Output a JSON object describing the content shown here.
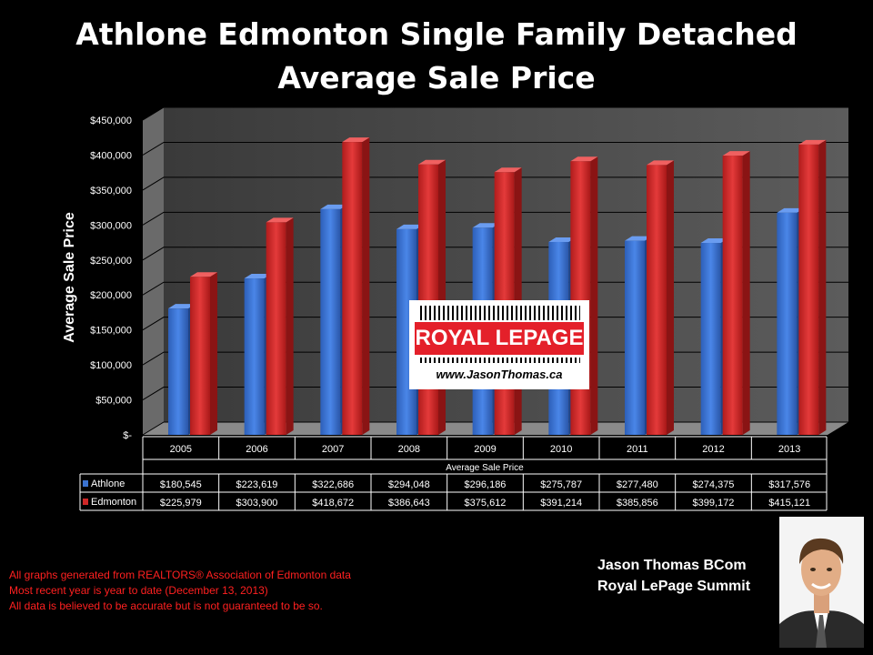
{
  "title": {
    "line1": "Athlone Edmonton Single Family Detached",
    "line2": "Average Sale Price"
  },
  "chart_data": {
    "type": "bar",
    "title": "Athlone Edmonton Single Family Detached Average Sale Price",
    "xlabel": "Average Sale Price",
    "ylabel": "Average Sale Price",
    "ylim": [
      0,
      450000
    ],
    "y_ticks": [
      "$-",
      "$50,000",
      "$100,000",
      "$150,000",
      "$200,000",
      "$250,000",
      "$300,000",
      "$350,000",
      "$400,000",
      "$450,000"
    ],
    "grid": true,
    "legend": "data-table",
    "categories": [
      "2005",
      "2006",
      "2007",
      "2008",
      "2009",
      "2010",
      "2011",
      "2012",
      "2013"
    ],
    "series": [
      {
        "name": "Athlone",
        "color": "#3a72d0",
        "values": [
          180545,
          223619,
          322686,
          294048,
          296186,
          275787,
          277480,
          274375,
          317576
        ],
        "labels": [
          "$180,545",
          "$223,619",
          "$322,686",
          "$294,048",
          "$296,186",
          "$275,787",
          "$277,480",
          "$274,375",
          "$317,576"
        ]
      },
      {
        "name": "Edmonton",
        "color": "#d02828",
        "values": [
          225979,
          303900,
          418672,
          386643,
          375612,
          391214,
          385856,
          399172,
          415121
        ],
        "labels": [
          "$225,979",
          "$303,900",
          "$418,672",
          "$386,643",
          "$375,612",
          "$391,214",
          "$385,856",
          "$399,172",
          "$415,121"
        ]
      }
    ]
  },
  "logo": {
    "brand": "ROYAL LEPAGE",
    "url": "www.JasonThomas.ca"
  },
  "notes": [
    "All graphs generated from REALTORS® Association of Edmonton data",
    "Most recent year is year to date (December 13, 2013)",
    "All data is believed to be accurate but is not guaranteed to be so."
  ],
  "agent": {
    "name": "Jason Thomas BCom",
    "company": "Royal LePage Summit"
  }
}
